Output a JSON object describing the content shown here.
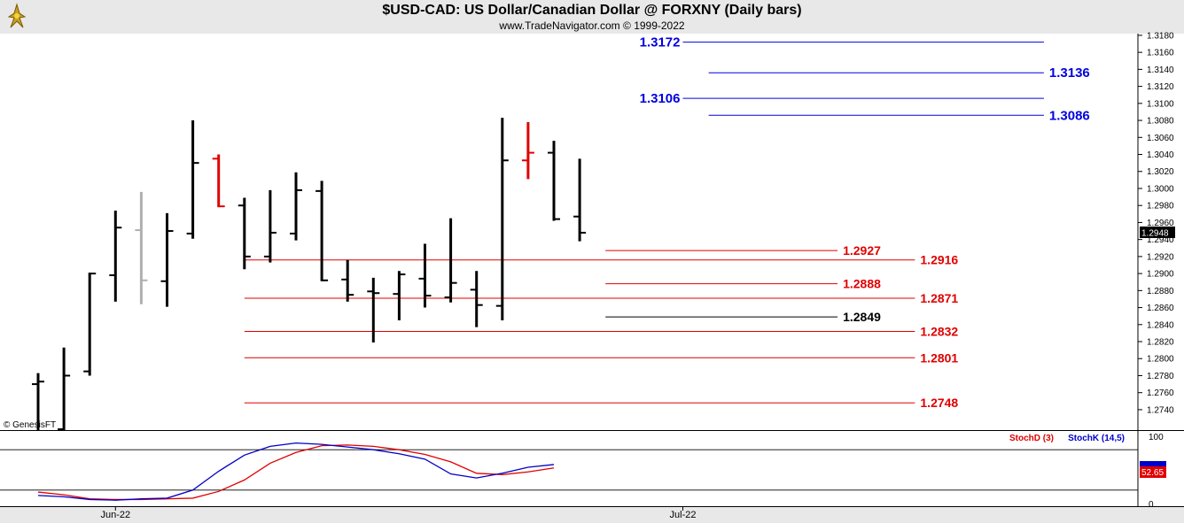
{
  "header": {
    "title": "$USD-CAD:  US Dollar/Canadian Dollar @ FORXNY  (Daily bars)",
    "subtitle": "www.TradeNavigator.com © 1999-2022"
  },
  "watermark": "© GenesisFT",
  "colors": {
    "up": "#000000",
    "down": "#e00000",
    "neutral": "#b0b0b0",
    "blue_level": "#0000e0",
    "red_level": "#e00000",
    "stochD": "#e00000",
    "stochK": "#0000c8"
  },
  "chart_data": [
    {
      "type": "ohlc",
      "title": "$USD-CAD:  US Dollar/Canadian Dollar @ FORXNY  (Daily bars)",
      "ylim": [
        1.2716,
        1.3182
      ],
      "y_ticks": [
        "1.3180",
        "1.3160",
        "1.3140",
        "1.3120",
        "1.3100",
        "1.3080",
        "1.3060",
        "1.3040",
        "1.3020",
        "1.3000",
        "1.2980",
        "1.2960",
        "1.2940",
        "1.2920",
        "1.2900",
        "1.2880",
        "1.2860",
        "1.2840",
        "1.2820",
        "1.2800",
        "1.2780",
        "1.2760",
        "1.2740"
      ],
      "x_tick_labels": [
        {
          "label": "Jun-22",
          "index": 3
        },
        {
          "label": "Jul-22",
          "index": 25
        }
      ],
      "last_price": "1.2948",
      "bars": [
        {
          "o": 1.277,
          "h": 1.2783,
          "l": 1.2716,
          "c": 1.2773,
          "color": "up"
        },
        {
          "o": 1.2717,
          "h": 1.2813,
          "l": 1.2716,
          "c": 1.278,
          "color": "up"
        },
        {
          "o": 1.2785,
          "h": 1.2901,
          "l": 1.278,
          "c": 1.29,
          "color": "up"
        },
        {
          "o": 1.2898,
          "h": 1.2974,
          "l": 1.2867,
          "c": 1.2954,
          "color": "up"
        },
        {
          "o": 1.2951,
          "h": 1.2996,
          "l": 1.2864,
          "c": 1.2892,
          "color": "neutral"
        },
        {
          "o": 1.2891,
          "h": 1.2971,
          "l": 1.2861,
          "c": 1.295,
          "color": "up"
        },
        {
          "o": 1.2947,
          "h": 1.308,
          "l": 1.2941,
          "c": 1.303,
          "color": "up"
        },
        {
          "o": 1.3035,
          "h": 1.304,
          "l": 1.2978,
          "c": 1.2979,
          "color": "down"
        },
        {
          "o": 1.298,
          "h": 1.2989,
          "l": 1.2905,
          "c": 1.292,
          "color": "up"
        },
        {
          "o": 1.292,
          "h": 1.2998,
          "l": 1.2913,
          "c": 1.2948,
          "color": "up"
        },
        {
          "o": 1.2947,
          "h": 1.3019,
          "l": 1.2939,
          "c": 1.2998,
          "color": "up"
        },
        {
          "o": 1.2997,
          "h": 1.3009,
          "l": 1.2891,
          "c": 1.2892,
          "color": "up"
        },
        {
          "o": 1.2893,
          "h": 1.2916,
          "l": 1.2867,
          "c": 1.2875,
          "color": "up"
        },
        {
          "o": 1.2879,
          "h": 1.2895,
          "l": 1.2819,
          "c": 1.2877,
          "color": "up"
        },
        {
          "o": 1.2876,
          "h": 1.2903,
          "l": 1.2845,
          "c": 1.2899,
          "color": "up"
        },
        {
          "o": 1.2894,
          "h": 1.2935,
          "l": 1.286,
          "c": 1.2874,
          "color": "up"
        },
        {
          "o": 1.2872,
          "h": 1.2965,
          "l": 1.2866,
          "c": 1.2889,
          "color": "up"
        },
        {
          "o": 1.2881,
          "h": 1.2903,
          "l": 1.2837,
          "c": 1.2863,
          "color": "up"
        },
        {
          "o": 1.2862,
          "h": 1.3083,
          "l": 1.2845,
          "c": 1.3033,
          "color": "up"
        },
        {
          "o": 1.3033,
          "h": 1.3078,
          "l": 1.3011,
          "c": 1.3042,
          "color": "down"
        },
        {
          "o": 1.3042,
          "h": 1.3056,
          "l": 1.2962,
          "c": 1.2964,
          "color": "up"
        },
        {
          "o": 1.2967,
          "h": 1.3035,
          "l": 1.2938,
          "c": 1.2948,
          "color": "up"
        }
      ],
      "levels": [
        {
          "value": 1.3172,
          "label": "1.3172",
          "color": "blue",
          "from": 25,
          "to": 39,
          "label_side": "left"
        },
        {
          "value": 1.3136,
          "label": "1.3136",
          "color": "blue",
          "from": 26,
          "to": 39,
          "label_side": "right"
        },
        {
          "value": 1.3106,
          "label": "1.3106",
          "color": "blue",
          "from": 25,
          "to": 39,
          "label_side": "left"
        },
        {
          "value": 1.3086,
          "label": "1.3086",
          "color": "blue",
          "from": 26,
          "to": 39,
          "label_side": "right"
        },
        {
          "value": 1.2927,
          "label": "1.2927",
          "color": "red",
          "from": 22,
          "to": 31,
          "label_side": "right"
        },
        {
          "value": 1.2916,
          "label": "1.2916",
          "color": "red",
          "from": 8,
          "to": 34,
          "label_side": "right"
        },
        {
          "value": 1.2888,
          "label": "1.2888",
          "color": "red",
          "from": 22,
          "to": 31,
          "label_side": "right"
        },
        {
          "value": 1.2871,
          "label": "1.2871",
          "color": "red",
          "from": 8,
          "to": 34,
          "label_side": "right"
        },
        {
          "value": 1.2849,
          "label": "1.2849",
          "color": "black",
          "from": 22,
          "to": 31,
          "label_side": "right"
        },
        {
          "value": 1.2832,
          "label": "1.2832",
          "color": "red",
          "from": 8,
          "to": 34,
          "label_side": "right"
        },
        {
          "value": 1.2801,
          "label": "1.2801",
          "color": "red",
          "from": 8,
          "to": 34,
          "label_side": "right"
        },
        {
          "value": 1.2748,
          "label": "1.2748",
          "color": "red",
          "from": 8,
          "to": 34,
          "label_side": "right"
        }
      ]
    },
    {
      "type": "line",
      "ylim": [
        0,
        100
      ],
      "y_ticks": [
        "100",
        "0"
      ],
      "last_value": "52.65",
      "guides": [
        80,
        20
      ],
      "series": [
        {
          "name": "StochD (3)",
          "color": "red",
          "values": [
            17,
            13,
            7,
            6,
            6,
            7,
            8,
            18,
            35,
            60,
            76,
            86,
            87,
            85,
            80,
            73,
            62,
            45,
            43,
            47,
            53
          ]
        },
        {
          "name": "StochK (14,5)",
          "color": "blue",
          "values": [
            12,
            10,
            6,
            5,
            7,
            8,
            20,
            48,
            72,
            85,
            90,
            88,
            84,
            80,
            74,
            66,
            44,
            38,
            45,
            54,
            58
          ]
        }
      ]
    }
  ]
}
